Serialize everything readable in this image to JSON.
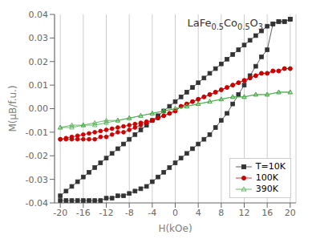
{
  "chart_data": {
    "type": "line",
    "title": "LaFe0.5Co0.5O3",
    "xlabel": "H(kOe)",
    "ylabel": "M(μB/f.u.)",
    "xlim": [
      -21,
      21
    ],
    "ylim": [
      -0.04,
      0.04
    ],
    "xticks": [
      -20,
      -16,
      -12,
      -8,
      -4,
      0,
      4,
      8,
      12,
      16,
      20
    ],
    "yticks": [
      -0.04,
      -0.03,
      -0.02,
      -0.01,
      {
        "value": 0,
        "label": "0.00"
      },
      0.01,
      0.02,
      0.03,
      0.04
    ],
    "grid": "x",
    "legend": "lower right",
    "series": [
      {
        "name": "T=10K",
        "color": "#333333",
        "marker": "square",
        "x": [
          -20,
          -19,
          -18,
          -17,
          -16,
          -15,
          -14,
          -13,
          -12,
          -11,
          -10,
          -9,
          -8,
          -7,
          -6,
          -5,
          -4,
          -3,
          -2,
          -1,
          0,
          1,
          2,
          3,
          4,
          5,
          6,
          7,
          8,
          9,
          10,
          11,
          12,
          13,
          14,
          15,
          16,
          17,
          18,
          19,
          20,
          20,
          19,
          18,
          17,
          16,
          15,
          14,
          13,
          12,
          11,
          10,
          9,
          8,
          7,
          6,
          5,
          4,
          3,
          2,
          1,
          0,
          -1,
          -2,
          -3,
          -4,
          -5,
          -6,
          -7,
          -8,
          -9,
          -10,
          -11,
          -12,
          -13,
          -14,
          -15,
          -16,
          -17,
          -18,
          -19,
          -20
        ],
        "values": [
          -0.037,
          -0.035,
          -0.033,
          -0.031,
          -0.029,
          -0.027,
          -0.025,
          -0.023,
          -0.021,
          -0.019,
          -0.017,
          -0.015,
          -0.013,
          -0.011,
          -0.009,
          -0.007,
          -0.005,
          -0.003,
          -0.001,
          0.001,
          0.003,
          0.005,
          0.007,
          0.009,
          0.011,
          0.013,
          0.015,
          0.017,
          0.019,
          0.021,
          0.023,
          0.025,
          0.027,
          0.029,
          0.031,
          0.033,
          0.035,
          0.036,
          0.037,
          0.037,
          0.038,
          0.038,
          0.037,
          0.037,
          0.036,
          0.025,
          0.022,
          0.018,
          0.014,
          0.01,
          0.006,
          0.002,
          -0.002,
          -0.005,
          -0.008,
          -0.011,
          -0.013,
          -0.015,
          -0.017,
          -0.019,
          -0.021,
          -0.023,
          -0.025,
          -0.027,
          -0.029,
          -0.031,
          -0.033,
          -0.034,
          -0.035,
          -0.036,
          -0.037,
          -0.037,
          -0.038,
          -0.038,
          -0.039,
          -0.039,
          -0.039,
          -0.039,
          -0.039,
          -0.039,
          -0.039,
          -0.039
        ]
      },
      {
        "name": "100K",
        "color": "#cc0000",
        "marker": "circle",
        "x": [
          -20,
          -19,
          -18,
          -17,
          -16,
          -15,
          -14,
          -13,
          -12,
          -11,
          -10,
          -9,
          -8,
          -7,
          -6,
          -5,
          -4,
          -3,
          -2,
          -1,
          0,
          1,
          2,
          3,
          4,
          5,
          6,
          7,
          8,
          9,
          10,
          11,
          12,
          13,
          14,
          15,
          16,
          17,
          18,
          19,
          20,
          20,
          19,
          18,
          17,
          16,
          15,
          14,
          13,
          12,
          11,
          10,
          9,
          8,
          7,
          6,
          5,
          4,
          3,
          2,
          1,
          0,
          -1,
          -2,
          -3,
          -4,
          -5,
          -6,
          -7,
          -8,
          -9,
          -10,
          -11,
          -12,
          -13,
          -14,
          -15,
          -16,
          -17,
          -18,
          -19,
          -20
        ],
        "values": [
          -0.013,
          -0.0125,
          -0.012,
          -0.0115,
          -0.011,
          -0.0105,
          -0.01,
          -0.0095,
          -0.009,
          -0.0085,
          -0.008,
          -0.0075,
          -0.007,
          -0.0065,
          -0.006,
          -0.0055,
          -0.005,
          -0.004,
          -0.003,
          -0.002,
          -0.001,
          0.001,
          0.002,
          0.003,
          0.004,
          0.005,
          0.006,
          0.007,
          0.008,
          0.009,
          0.01,
          0.011,
          0.012,
          0.013,
          0.014,
          0.015,
          0.015,
          0.016,
          0.016,
          0.017,
          0.017,
          0.017,
          0.017,
          0.016,
          0.016,
          0.015,
          0.015,
          0.014,
          0.013,
          0.012,
          0.011,
          0.01,
          0.009,
          0.008,
          0.007,
          0.006,
          0.005,
          0.004,
          0.003,
          0.002,
          0.001,
          -0.001,
          -0.002,
          -0.003,
          -0.004,
          -0.005,
          -0.006,
          -0.007,
          -0.008,
          -0.009,
          -0.01,
          -0.01,
          -0.011,
          -0.012,
          -0.012,
          -0.013,
          -0.013,
          -0.013,
          -0.013,
          -0.013,
          -0.013,
          -0.013
        ]
      },
      {
        "name": "390K",
        "color": "#44aa44",
        "marker": "open triangle",
        "x": [
          -20,
          -18,
          -16,
          -14,
          -12,
          -10,
          -8,
          -6,
          -4,
          -2,
          0,
          2,
          4,
          6,
          8,
          10,
          12,
          14,
          16,
          18,
          20,
          20,
          18,
          16,
          14,
          12,
          10,
          8,
          6,
          4,
          2,
          0,
          -2,
          -4,
          -6,
          -8,
          -10,
          -12,
          -14,
          -16,
          -18,
          -20
        ],
        "values": [
          -0.008,
          -0.008,
          -0.007,
          -0.007,
          -0.006,
          -0.005,
          -0.004,
          -0.003,
          -0.002,
          -0.001,
          0.0,
          0.001,
          0.002,
          0.003,
          0.004,
          0.005,
          0.005,
          0.006,
          0.006,
          0.007,
          0.007,
          0.007,
          0.007,
          0.006,
          0.006,
          0.005,
          0.005,
          0.004,
          0.003,
          0.002,
          0.001,
          0.0,
          -0.001,
          -0.002,
          -0.003,
          -0.004,
          -0.005,
          -0.005,
          -0.006,
          -0.007,
          -0.007,
          -0.008
        ]
      }
    ]
  }
}
